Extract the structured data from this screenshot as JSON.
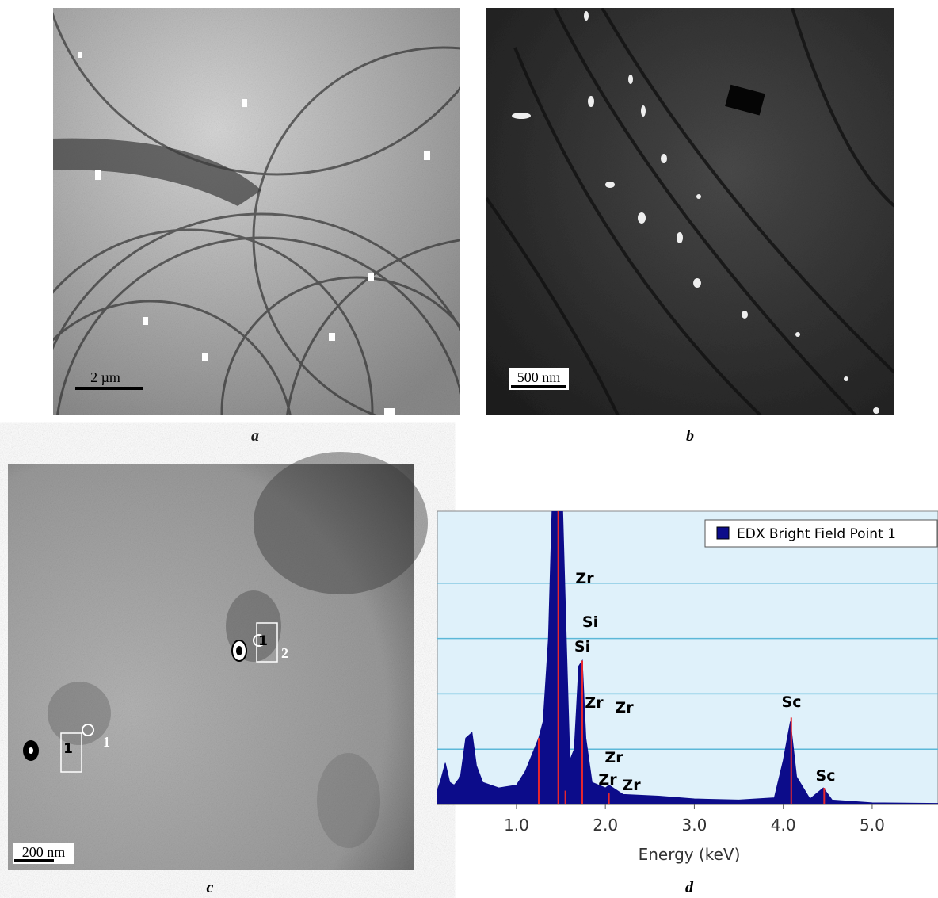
{
  "figure": {
    "panels": [
      {
        "caption": "a",
        "scale_bar": "2 µm"
      },
      {
        "caption": "b",
        "scale_bar": "500 nm"
      },
      {
        "caption": "c",
        "scale_bar": "200 nm",
        "markers": [
          "1",
          "1",
          "1",
          "2"
        ]
      }
    ]
  },
  "chart_data": {
    "type": "area",
    "caption": "d",
    "x_label": "Energy (keV)",
    "legend": "EDX Bright Field Point 1",
    "color": "#0c0c8a",
    "background": "#dff1fa",
    "grid_color": "#5cb8d8",
    "xlim": [
      0.11,
      5.74
    ],
    "ylim": [
      0,
      5.3
    ],
    "xticks": [
      {
        "value": 1,
        "label": "1.0"
      },
      {
        "value": 2,
        "label": "2.0"
      },
      {
        "value": 3,
        "label": "3.0"
      },
      {
        "value": 4,
        "label": "4.0"
      },
      {
        "value": 5,
        "label": "5.0"
      }
    ],
    "ygrid": [
      1,
      2,
      3,
      4
    ],
    "x": [
      0.11,
      0.15,
      0.2,
      0.25,
      0.3,
      0.37,
      0.43,
      0.5,
      0.55,
      0.62,
      0.8,
      1.0,
      1.1,
      1.2,
      1.25,
      1.3,
      1.36,
      1.4,
      1.46,
      1.52,
      1.56,
      1.6,
      1.65,
      1.7,
      1.74,
      1.78,
      1.85,
      2.0,
      2.04,
      2.2,
      2.6,
      3.0,
      3.5,
      3.9,
      4.0,
      4.08,
      4.15,
      4.3,
      4.45,
      4.55,
      5.0,
      5.74
    ],
    "values": [
      0.25,
      0.45,
      0.75,
      0.4,
      0.35,
      0.5,
      1.2,
      1.3,
      0.7,
      0.4,
      0.3,
      0.35,
      0.6,
      1.0,
      1.2,
      1.5,
      3.0,
      5.3,
      5.3,
      5.3,
      3.0,
      0.8,
      1.0,
      2.5,
      2.6,
      1.2,
      0.4,
      0.3,
      0.35,
      0.18,
      0.15,
      0.1,
      0.08,
      0.12,
      0.8,
      1.5,
      0.5,
      0.1,
      0.3,
      0.08,
      0.03,
      0.02
    ],
    "markers": {
      "x": [
        1.25,
        1.47,
        1.55,
        1.74,
        2.04,
        4.09,
        4.46
      ],
      "y": [
        1.2,
        5.3,
        0.25,
        2.6,
        0.2,
        1.57,
        0.3
      ]
    },
    "annotations": [
      "Zr",
      "Si",
      "Si",
      "Zr",
      "Zr",
      "Zr",
      "Zr",
      "Zr",
      "Sc",
      "Sc"
    ]
  }
}
